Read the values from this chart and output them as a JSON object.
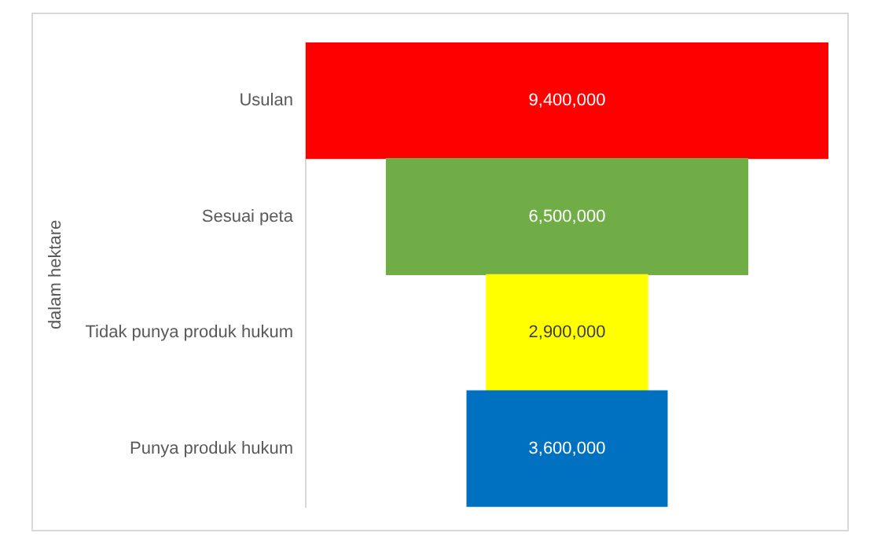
{
  "chart_data": {
    "type": "other",
    "ylabel": "dalam hektare",
    "categories": [
      "Usulan",
      "Sesuai peta",
      "Tidak punya produk hukum",
      "Punya produk hukum"
    ],
    "values": [
      9400000,
      6500000,
      2900000,
      3600000
    ],
    "value_labels": [
      "9,400,000",
      "6,500,000",
      "2,900,000",
      "3,600,000"
    ],
    "colors": [
      "#ff0000",
      "#70ad47",
      "#ffff00",
      "#0070c0"
    ]
  }
}
